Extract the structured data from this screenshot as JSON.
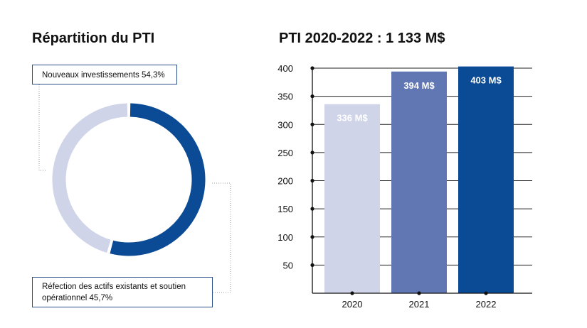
{
  "donut": {
    "title": "Répartition du PTI",
    "callout_new": "Nouveaux investissements 54,3%",
    "callout_refection": "Réfection des actifs existants et soutien opérationnel 45,7%"
  },
  "chart_data": [
    {
      "type": "pie",
      "title": "Répartition du PTI",
      "slices": [
        {
          "label": "Nouveaux investissements",
          "value": 54.3,
          "color": "#0b4a94"
        },
        {
          "label": "Réfection des actifs existants et soutien opérationnel",
          "value": 45.7,
          "color": "#cfd4e8"
        }
      ]
    },
    {
      "type": "bar",
      "title": "PTI 2020-2022 : 1 133 M$",
      "categories": [
        "2020",
        "2021",
        "2022"
      ],
      "values": [
        336,
        394,
        403
      ],
      "data_labels": [
        "336 M$",
        "394 M$",
        "403 M$"
      ],
      "colors": [
        "#cfd4e8",
        "#6177b3",
        "#0b4a94"
      ],
      "yticks": [
        50,
        100,
        150,
        200,
        250,
        300,
        350,
        400
      ],
      "ylim": [
        0,
        400
      ],
      "grid": true,
      "xlabel": "",
      "ylabel": ""
    }
  ]
}
